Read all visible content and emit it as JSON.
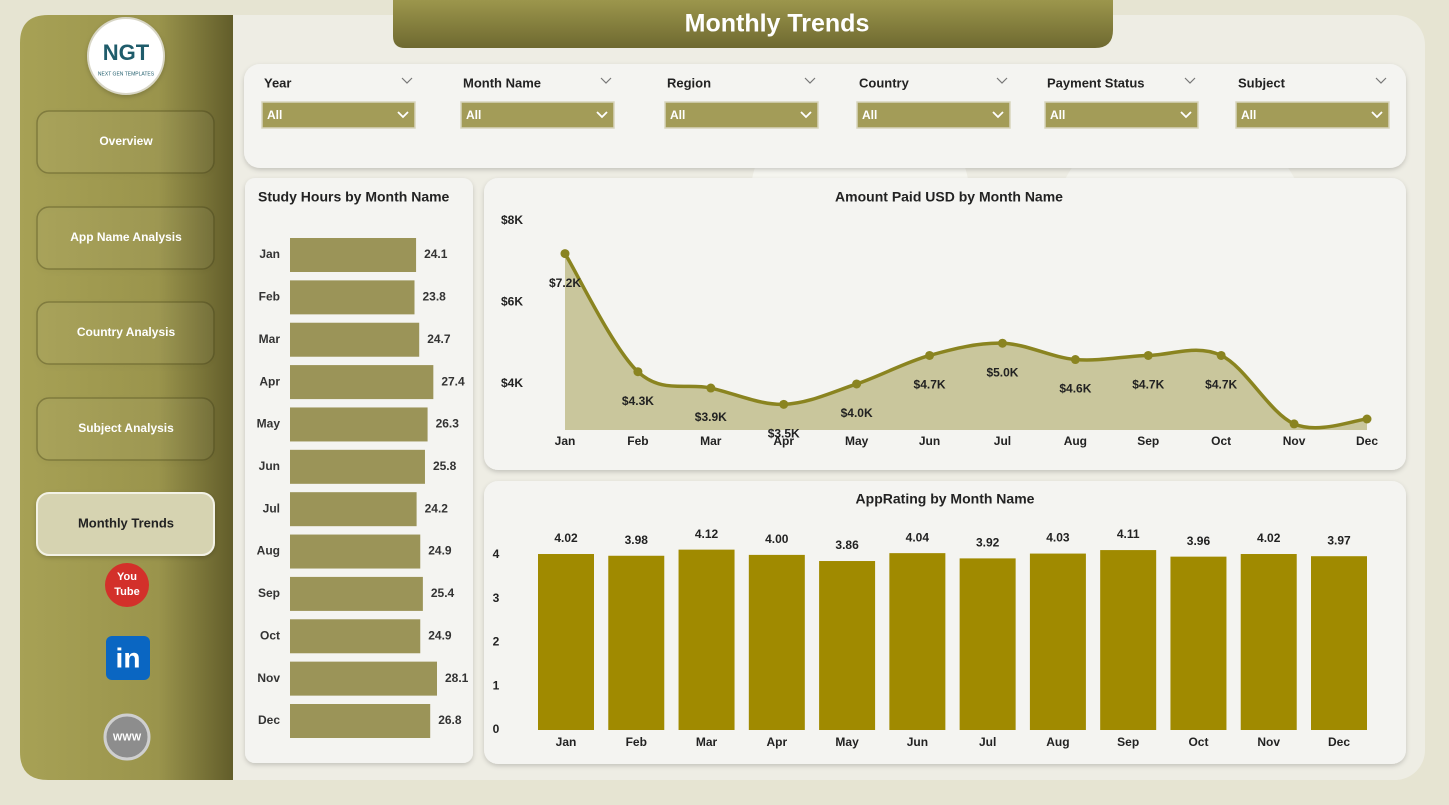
{
  "header": {
    "title": "Monthly Trends"
  },
  "logo": {
    "text": "NGT",
    "subtitle": "NEXT GEN TEMPLATES"
  },
  "nav": [
    "Overview",
    "App Name Analysis",
    "Country Analysis",
    "Subject Analysis",
    "Monthly Trends"
  ],
  "social": {
    "youtube_top": "You",
    "youtube_bottom": "Tube",
    "linkedin": "in",
    "web": "WWW"
  },
  "filters": [
    {
      "label": "Year",
      "value": "All"
    },
    {
      "label": "Month Name",
      "value": "All"
    },
    {
      "label": "Region",
      "value": "All"
    },
    {
      "label": "Country",
      "value": "All"
    },
    {
      "label": "Payment Status",
      "value": "All"
    },
    {
      "label": "Subject",
      "value": "All"
    }
  ],
  "chart_data": [
    {
      "type": "hbar",
      "title": "Study Hours by Month Name",
      "categories": [
        "Jan",
        "Feb",
        "Mar",
        "Apr",
        "May",
        "Jun",
        "Jul",
        "Aug",
        "Sep",
        "Oct",
        "Nov",
        "Dec"
      ],
      "values": [
        24.1,
        23.8,
        24.7,
        27.4,
        26.3,
        25.8,
        24.2,
        24.9,
        25.4,
        24.9,
        28.1,
        26.8
      ],
      "color": "#9b9458"
    },
    {
      "type": "area",
      "title": "Amount Paid USD by Month Name",
      "categories": [
        "Jan",
        "Feb",
        "Mar",
        "Apr",
        "May",
        "Jun",
        "Jul",
        "Aug",
        "Sep",
        "Oct",
        "Nov",
        "Dec"
      ],
      "values": [
        7200,
        4300,
        3900,
        3500,
        4000,
        4700,
        5000,
        4600,
        4700,
        4700,
        3020,
        3140
      ],
      "value_labels": [
        "$7.2K",
        "$4.3K",
        "$3.9K",
        "$3.5K",
        "$4.0K",
        "$4.7K",
        "$5.0K",
        "$4.6K",
        "$4.7K",
        "$4.7K",
        null,
        null
      ],
      "ylim": [
        2870,
        8000
      ],
      "yticks": [
        {
          "value": 4000,
          "label": "$4K"
        },
        {
          "value": 6000,
          "label": "$6K"
        },
        {
          "value": 8000,
          "label": "$8K"
        }
      ],
      "color": "#8a8420",
      "fill": "#c9c69c"
    },
    {
      "type": "bar",
      "title": "AppRating by Month Name",
      "categories": [
        "Jan",
        "Feb",
        "Mar",
        "Apr",
        "May",
        "Jun",
        "Jul",
        "Aug",
        "Sep",
        "Oct",
        "Nov",
        "Dec"
      ],
      "values": [
        4.02,
        3.98,
        4.12,
        4.0,
        3.86,
        4.04,
        3.92,
        4.03,
        4.11,
        3.96,
        4.02,
        3.97
      ],
      "value_labels": [
        "4.02",
        "3.98",
        "4.12",
        "4.00",
        "3.86",
        "4.04",
        "3.92",
        "4.03",
        "4.11",
        "3.96",
        "4.02",
        "3.97"
      ],
      "ylim": [
        0,
        4.5
      ],
      "yticks": [
        0,
        1,
        2,
        3,
        4
      ],
      "color": "#a08a00"
    }
  ]
}
